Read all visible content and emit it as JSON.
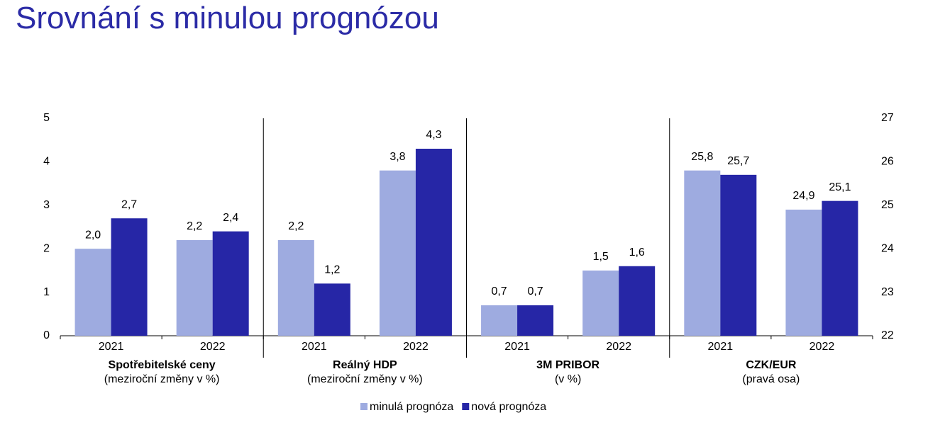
{
  "chart_data": {
    "type": "bar",
    "title": "Srovnání s minulou prognózou",
    "categories": [
      "2021",
      "2022",
      "2021",
      "2022",
      "2021",
      "2022",
      "2021",
      "2022"
    ],
    "groups": [
      {
        "name": "Spotřebitelské ceny",
        "subtitle": "(meziroční změny v %)"
      },
      {
        "name": "Reálný HDP",
        "subtitle": "(meziroční změny v %)"
      },
      {
        "name": "3M PRIBOR",
        "subtitle": "(v %)"
      },
      {
        "name": "CZK/EUR",
        "subtitle": "(pravá osa)"
      }
    ],
    "value_axes": [
      "y",
      "y",
      "y",
      "y",
      "y",
      "y",
      "y2",
      "y2"
    ],
    "series": [
      {
        "name": "minulá prognóza",
        "color": "#9eabe0",
        "values": [
          2.0,
          2.2,
          2.2,
          3.8,
          0.7,
          1.5,
          25.8,
          24.9
        ],
        "value_labels": [
          "2,0",
          "2,2",
          "2,2",
          "3,8",
          "0,7",
          "1,5",
          "25,8",
          "24,9"
        ]
      },
      {
        "name": "nová prognóza",
        "color": "#2626a6",
        "values": [
          2.7,
          2.4,
          1.2,
          4.3,
          0.7,
          1.6,
          25.7,
          25.1
        ],
        "value_labels": [
          "2,7",
          "2,4",
          "1,2",
          "4,3",
          "0,7",
          "1,6",
          "25,7",
          "25,1"
        ]
      }
    ],
    "ylim": [
      0,
      5
    ],
    "yticks": [
      0,
      1,
      2,
      3,
      4,
      5
    ],
    "y2lim": [
      22,
      27
    ],
    "y2ticks": [
      22,
      23,
      24,
      25,
      26,
      27
    ],
    "legend": "bottom"
  }
}
